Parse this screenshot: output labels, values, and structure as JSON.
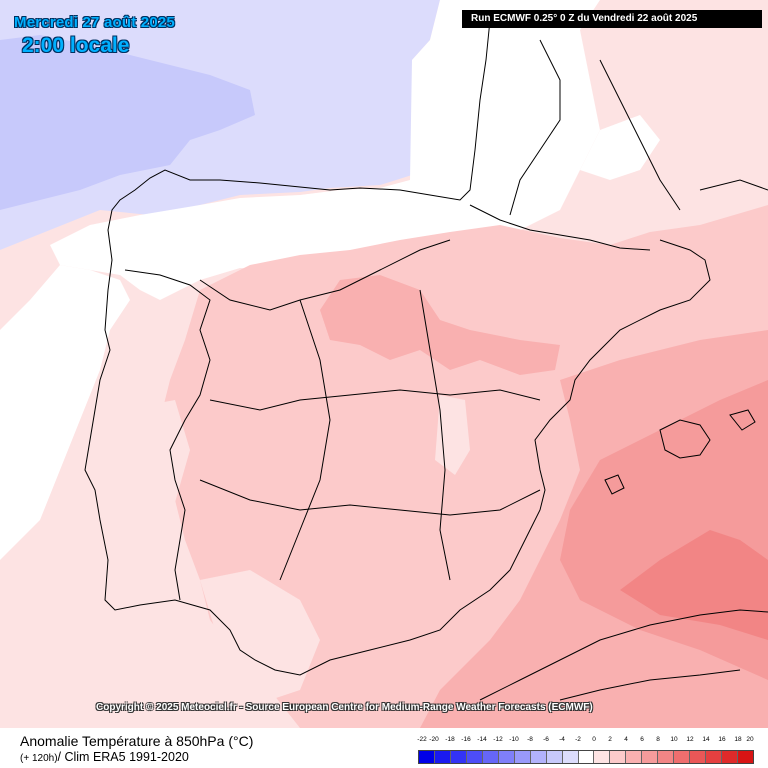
{
  "header": {
    "date_label": "Mercredi 27 août 2025",
    "time_label": "2:00 locale",
    "run_label": "Run ECMWF 0.25° 0 Z du Vendredi 22 août 2025"
  },
  "map": {
    "region": "Iberian Peninsula",
    "colors": {
      "sea_base": "#fde3e3",
      "negative_light": "#dcdcfc",
      "negative_medium": "#c7c9fb",
      "neutral": "#ffffff",
      "anomaly_0_2": "#fde3e3",
      "anomaly_2_4": "#fccaca",
      "anomaly_4_6": "#f9b0b0",
      "anomaly_6_8": "#f59b9b",
      "anomaly_8_10": "#f28585",
      "border": "#000000"
    }
  },
  "copyright": "Copyright © 2025 Meteociel.fr - Source European Centre for Medium-Range Weather Forecasts (ECMWF)",
  "footer": {
    "parameter_title": "Anomalie Température à 850hPa (°C)",
    "lead_time": "(+ 120h)",
    "clim_label": "/ Clim ERA5 1991-2020"
  },
  "legend": {
    "labels": [
      "-22",
      "-20",
      "-18",
      "-16",
      "-14",
      "-12",
      "-10",
      "-8",
      "-6",
      "-4",
      "-2",
      "0",
      "2",
      "4",
      "6",
      "8",
      "10",
      "12",
      "14",
      "16",
      "18",
      "20"
    ],
    "colors": [
      "#0000e8",
      "#1a1af0",
      "#3333f5",
      "#4d4df7",
      "#6666f8",
      "#7f7ff9",
      "#9999fa",
      "#b2b2fb",
      "#c7c9fb",
      "#dcdcfc",
      "#ffffff",
      "#fde3e3",
      "#fccaca",
      "#f9b0b0",
      "#f59b9b",
      "#f28585",
      "#ee6e6e",
      "#ea5757",
      "#e54040",
      "#df2a2a",
      "#d81414"
    ]
  }
}
